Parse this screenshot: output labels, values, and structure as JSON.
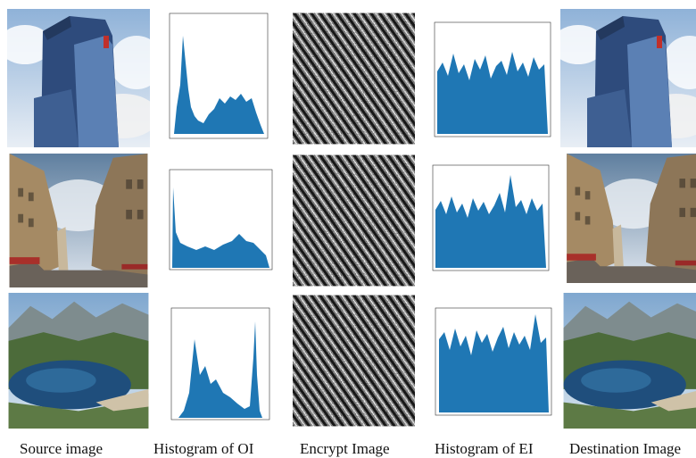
{
  "captions": [
    "Source image",
    "Histogram of OI",
    "Encrypt Image",
    "Histogram of EI",
    "Destination Image"
  ]
}
